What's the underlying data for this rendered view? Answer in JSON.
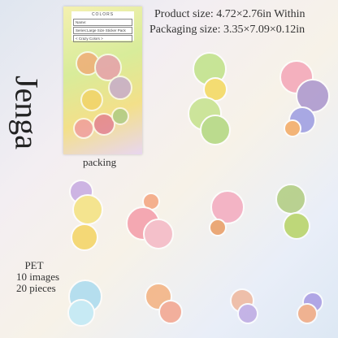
{
  "header": {
    "product_size": "Product size:  4.72×2.76in Within",
    "packaging_size": "Packaging size:  3.35×7.09×0.12in"
  },
  "brand": "Jenga",
  "package": {
    "logo": "COLORS",
    "name": "Name:",
    "series": "Series:Large Size Sticker Pack",
    "theme": "< Crazy Colors >",
    "caption": "packing"
  },
  "specs": {
    "material": "PET",
    "images": "10 images",
    "pieces": "20 pieces"
  }
}
